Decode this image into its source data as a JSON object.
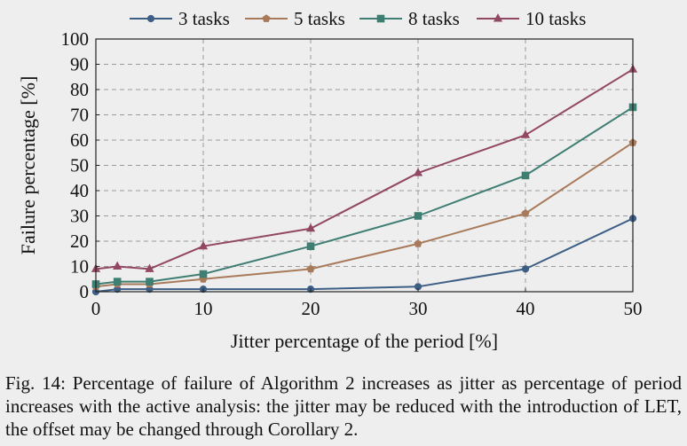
{
  "chart_data": {
    "type": "line",
    "title": "",
    "xlabel": "Jitter percentage of the period [%]",
    "ylabel": "Failure percentage [%]",
    "xlim": [
      0,
      50
    ],
    "ylim": [
      0,
      100
    ],
    "xticks": [
      0,
      10,
      20,
      30,
      40,
      50
    ],
    "yticks": [
      0,
      10,
      20,
      30,
      40,
      50,
      60,
      70,
      80,
      90,
      100
    ],
    "grid": "dashed vertical and horizontal",
    "legend": "top, horizontal, outside plot",
    "x": [
      0,
      2,
      5,
      10,
      20,
      30,
      40,
      50
    ],
    "series": [
      {
        "name": "3 tasks",
        "color": "#3d5f86",
        "marker": "circle",
        "values": [
          0,
          1,
          1,
          1,
          1,
          2,
          9,
          29
        ]
      },
      {
        "name": "5 tasks",
        "color": "#a87a5a",
        "marker": "pentagon",
        "values": [
          2,
          3,
          3,
          5,
          9,
          19,
          31,
          59
        ]
      },
      {
        "name": "8 tasks",
        "color": "#3f7e72",
        "marker": "square",
        "values": [
          3,
          4,
          4,
          7,
          18,
          30,
          46,
          73
        ]
      },
      {
        "name": "10 tasks",
        "color": "#924762",
        "marker": "triangle",
        "values": [
          9,
          10,
          9,
          18,
          25,
          47,
          62,
          88
        ]
      }
    ]
  },
  "caption": "Fig. 14: Percentage of failure of Algorithm 2 increases as jitter as percentage of period increases with the active analysis: the jitter may be reduced with the introduction of LET, the offset may be changed through Corollary 2."
}
